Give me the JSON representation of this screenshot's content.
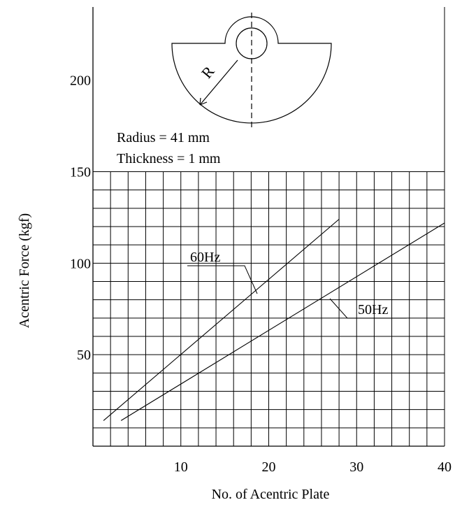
{
  "chart_data": {
    "type": "line",
    "xlabel": "No. of Acentric Plate",
    "ylabel": "Acentric Force (kgf)",
    "x_ticks": [
      10,
      20,
      30,
      40
    ],
    "y_ticks": [
      50,
      100,
      150,
      200
    ],
    "xlim": [
      0,
      40
    ],
    "ylim": [
      0,
      240
    ],
    "grid": true,
    "grid_region": "y 0 to 150",
    "series": [
      {
        "name": "60Hz",
        "x": [
          1.2,
          28
        ],
        "y": [
          14,
          124
        ]
      },
      {
        "name": "50Hz",
        "x": [
          3.2,
          40
        ],
        "y": [
          14,
          122
        ]
      }
    ],
    "inset": {
      "label": "R",
      "radius_text": "Radius = 41 mm",
      "thickness_text": "Thickness = 1 mm"
    }
  }
}
